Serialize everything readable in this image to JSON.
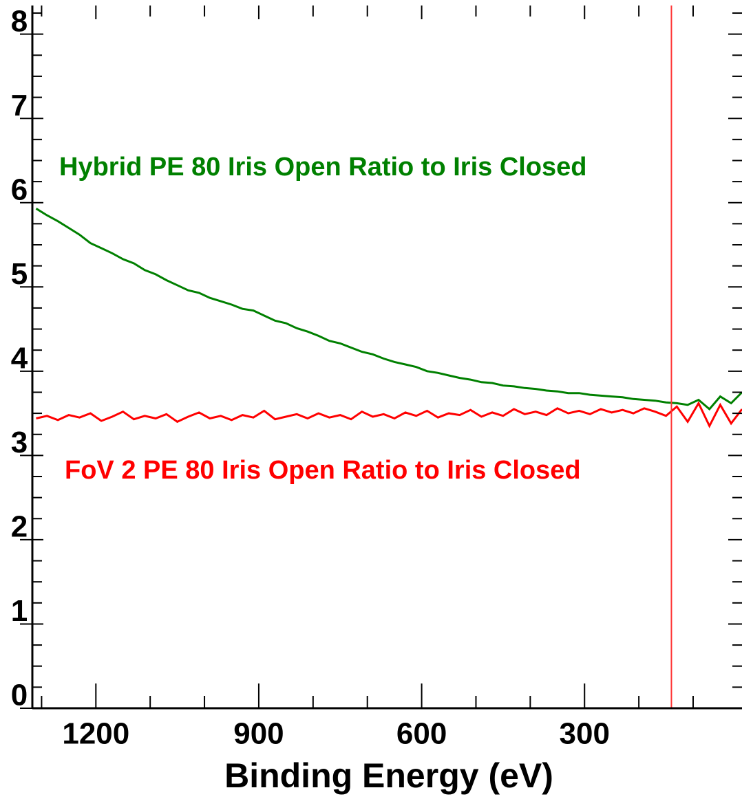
{
  "chart_data": {
    "type": "line",
    "x_label": "Binding Energy (eV)",
    "x": [
      1310,
      1290,
      1270,
      1250,
      1230,
      1210,
      1190,
      1170,
      1150,
      1130,
      1110,
      1090,
      1070,
      1050,
      1030,
      1010,
      990,
      970,
      950,
      930,
      910,
      890,
      870,
      850,
      830,
      810,
      790,
      770,
      750,
      730,
      710,
      690,
      670,
      650,
      630,
      610,
      590,
      570,
      550,
      530,
      510,
      490,
      470,
      450,
      430,
      410,
      390,
      370,
      350,
      330,
      310,
      290,
      270,
      250,
      230,
      210,
      190,
      170,
      150,
      130,
      110,
      90,
      70,
      50,
      30,
      10
    ],
    "series": [
      {
        "name": "Hybrid PE 80 Iris Open Ratio to Iris Closed",
        "color": "#008000",
        "values": [
          5.93,
          5.85,
          5.78,
          5.7,
          5.62,
          5.52,
          5.46,
          5.4,
          5.33,
          5.28,
          5.2,
          5.15,
          5.08,
          5.02,
          4.96,
          4.93,
          4.87,
          4.83,
          4.79,
          4.74,
          4.72,
          4.66,
          4.6,
          4.57,
          4.51,
          4.47,
          4.42,
          4.36,
          4.33,
          4.28,
          4.23,
          4.2,
          4.15,
          4.11,
          4.08,
          4.05,
          4.0,
          3.98,
          3.95,
          3.92,
          3.9,
          3.87,
          3.86,
          3.83,
          3.82,
          3.8,
          3.79,
          3.77,
          3.76,
          3.74,
          3.74,
          3.72,
          3.71,
          3.7,
          3.69,
          3.67,
          3.66,
          3.65,
          3.63,
          3.62,
          3.6,
          3.66,
          3.55,
          3.7,
          3.62,
          3.75
        ]
      },
      {
        "name": "FoV 2 PE 80 Iris Open Ratio to Iris Closed",
        "color": "#ff0000",
        "values": [
          3.44,
          3.47,
          3.42,
          3.48,
          3.45,
          3.5,
          3.41,
          3.46,
          3.52,
          3.43,
          3.47,
          3.44,
          3.49,
          3.4,
          3.46,
          3.51,
          3.44,
          3.47,
          3.42,
          3.48,
          3.45,
          3.53,
          3.43,
          3.46,
          3.49,
          3.44,
          3.5,
          3.45,
          3.48,
          3.43,
          3.52,
          3.46,
          3.49,
          3.44,
          3.51,
          3.47,
          3.53,
          3.45,
          3.5,
          3.48,
          3.54,
          3.46,
          3.51,
          3.47,
          3.55,
          3.49,
          3.52,
          3.48,
          3.56,
          3.5,
          3.53,
          3.49,
          3.55,
          3.51,
          3.54,
          3.5,
          3.56,
          3.52,
          3.47,
          3.58,
          3.4,
          3.62,
          3.35,
          3.6,
          3.38,
          3.55
        ]
      }
    ],
    "reference_line": {
      "x": 140,
      "color": "#ff3333"
    },
    "xlim": [
      1317,
      10
    ],
    "xticks": [
      1200,
      900,
      600,
      300
    ],
    "xminorticks": [
      1300,
      1100,
      1000,
      800,
      700,
      500,
      400,
      200,
      100
    ],
    "ylim": [
      0,
      8.34
    ],
    "yticks": [
      0,
      1,
      2,
      3,
      4,
      5,
      6,
      7,
      8
    ],
    "yminorticks": [
      0.25,
      0.5,
      0.75,
      1.25,
      1.5,
      1.75,
      2.25,
      2.5,
      2.75,
      3.25,
      3.5,
      3.75,
      4.25,
      4.5,
      4.75,
      5.25,
      5.5,
      5.75,
      6.25,
      6.5,
      6.75,
      7.25,
      7.5,
      7.75,
      8.25
    ]
  }
}
